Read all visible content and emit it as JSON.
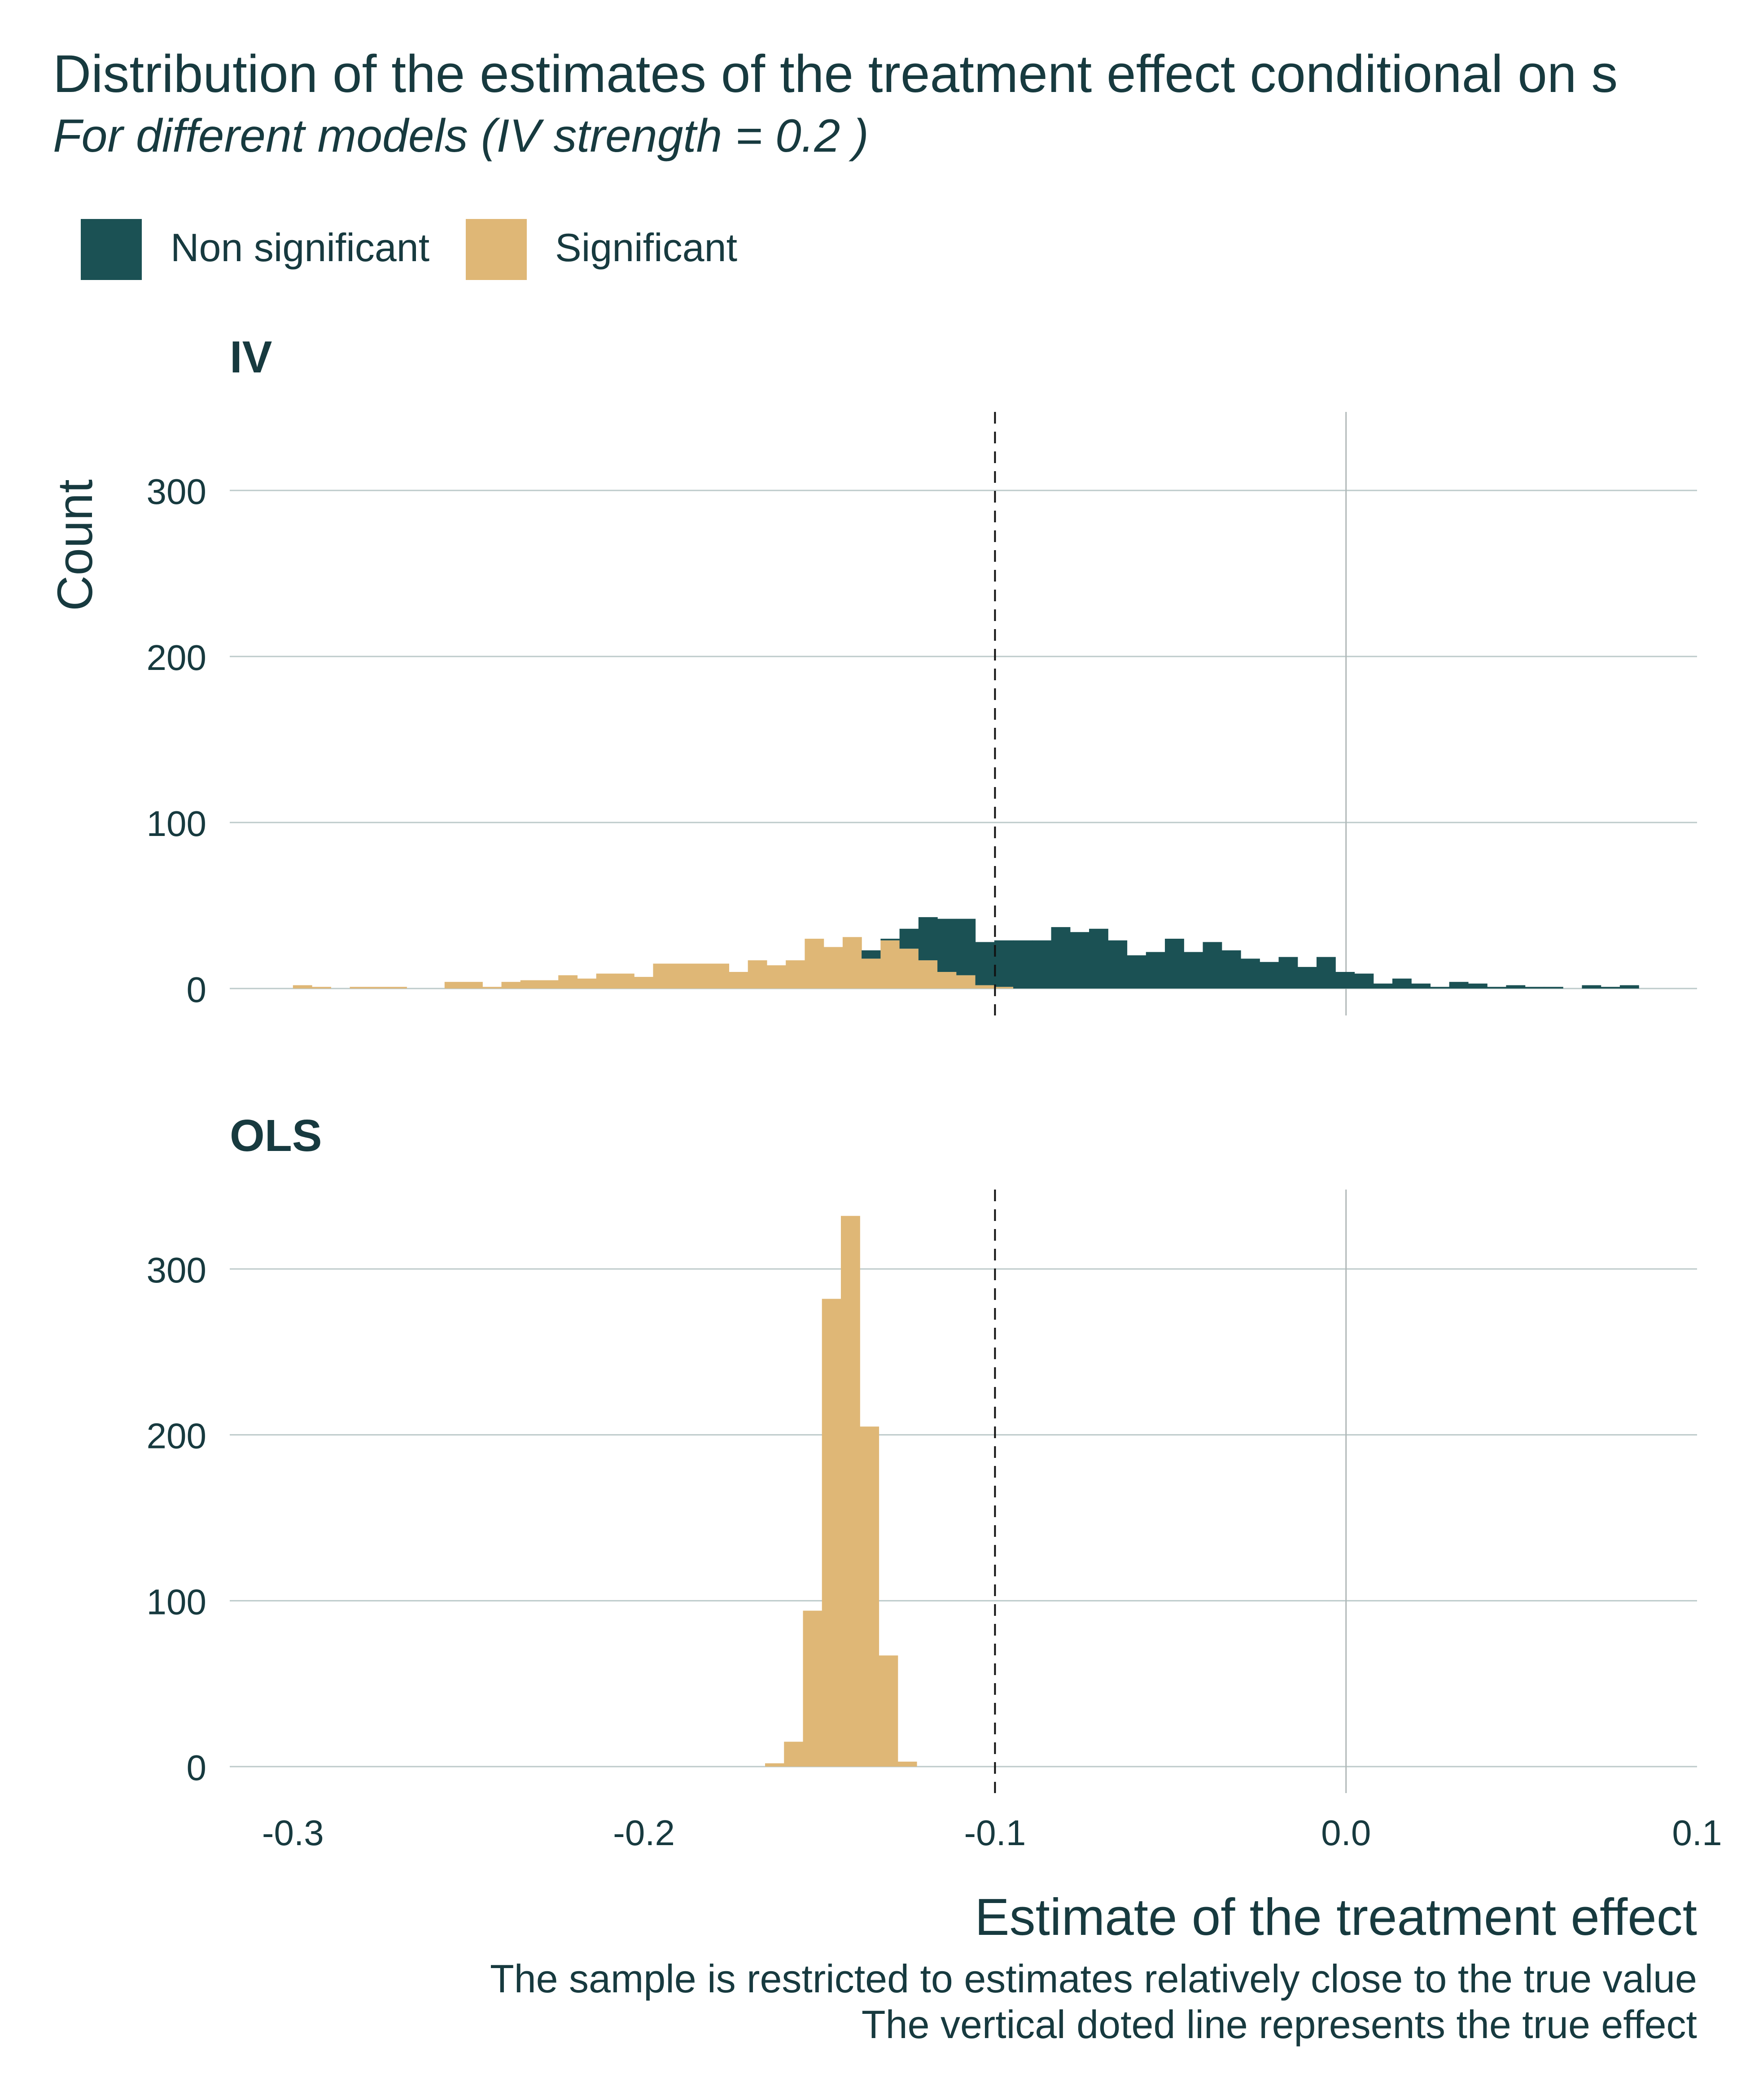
{
  "chart_data": {
    "type": "bar",
    "title": "Distribution of the estimates of the treatment effect conditional on s",
    "subtitle": "For different models (IV strength = 0.2 )",
    "xlabel": "Estimate of the treatment effect",
    "ylabel": "Count",
    "caption_lines": [
      "The sample is restricted to estimates relatively close to the true value",
      "The vertical doted line represents the true effect"
    ],
    "legend": {
      "position": "top-left",
      "items": [
        {
          "label": "Non significant",
          "color": "#1B5154"
        },
        {
          "label": "Significant",
          "color": "#DFB776"
        }
      ]
    },
    "xlim": [
      -0.318,
      0.1
    ],
    "x_ticks": [
      -0.3,
      -0.2,
      -0.1,
      0.0,
      0.1
    ],
    "x_tick_labels": [
      "-0.3",
      "-0.2",
      "-0.1",
      "0.0",
      "0.1"
    ],
    "ylim": [
      0,
      345
    ],
    "y_ticks": [
      0,
      100,
      200,
      300
    ],
    "y_tick_labels": [
      "0",
      "100",
      "200",
      "300"
    ],
    "true_effect": -0.1,
    "zero_line": 0.0,
    "grid": true,
    "bin_width": 0.0054,
    "panels": [
      {
        "label": "IV",
        "bin_starts": [
          -0.3,
          -0.2946,
          -0.2892,
          -0.2838,
          -0.2784,
          -0.273,
          -0.2676,
          -0.2622,
          -0.2568,
          -0.2514,
          -0.246,
          -0.2406,
          -0.2352,
          -0.2298,
          -0.2244,
          -0.219,
          -0.2136,
          -0.2082,
          -0.2028,
          -0.1974,
          -0.192,
          -0.1866,
          -0.1812,
          -0.1758,
          -0.1704,
          -0.165,
          -0.1596,
          -0.1542,
          -0.1488,
          -0.1434,
          -0.138,
          -0.1326,
          -0.1272,
          -0.1218,
          -0.1164,
          -0.111,
          -0.1056,
          -0.1002,
          -0.0948,
          -0.0894,
          -0.084,
          -0.0786,
          -0.0732,
          -0.0678,
          -0.0624,
          -0.057,
          -0.0516,
          -0.0462,
          -0.0408,
          -0.0354,
          -0.03,
          -0.0246,
          -0.0192,
          -0.0138,
          -0.0084,
          -0.003,
          0.0024,
          0.0078,
          0.0132,
          0.0186,
          0.024,
          0.0294,
          0.0348,
          0.0402,
          0.0456,
          0.051,
          0.0564,
          0.0618,
          0.0672,
          0.0726,
          0.078
        ],
        "series": [
          {
            "name": "Significant",
            "color": "#DFB776",
            "values": [
              2,
              1,
              0,
              1,
              1,
              1,
              0,
              0,
              4,
              4,
              1,
              4,
              5,
              5,
              8,
              6,
              9,
              9,
              7,
              15,
              15,
              15,
              15,
              10,
              17,
              14,
              17,
              30,
              25,
              31,
              18,
              29,
              24,
              17,
              10,
              8,
              2,
              1,
              0,
              0,
              0,
              0,
              0,
              0,
              0,
              0,
              0,
              0,
              0,
              0,
              0,
              0,
              0,
              0,
              0,
              0,
              0,
              0,
              0,
              0,
              0,
              0,
              0,
              0,
              0,
              0,
              0,
              0,
              0,
              0,
              0
            ]
          },
          {
            "name": "Non significant",
            "color": "#1B5154",
            "values": [
              0,
              0,
              0,
              0,
              0,
              0,
              0,
              0,
              0,
              0,
              0,
              0,
              0,
              0,
              0,
              0,
              0,
              0,
              0,
              0,
              0,
              0,
              0,
              0,
              0,
              0,
              0,
              0,
              0,
              0,
              5,
              1,
              12,
              26,
              32,
              34,
              26,
              28,
              29,
              29,
              37,
              34,
              36,
              29,
              20,
              22,
              30,
              22,
              28,
              23,
              18,
              16,
              19,
              13,
              19,
              10,
              9,
              3,
              6,
              3,
              1,
              4,
              3,
              1,
              2,
              1,
              1,
              0,
              2,
              1,
              2
            ]
          }
        ]
      },
      {
        "label": "OLS",
        "bin_starts": [
          -0.1655,
          -0.1601,
          -0.1547,
          -0.1493,
          -0.1439,
          -0.1385,
          -0.1331,
          -0.1277,
          -0.1223
        ],
        "series": [
          {
            "name": "Significant",
            "color": "#DFB776",
            "values": [
              2,
              15,
              94,
              282,
              332,
              205,
              67,
              3,
              0
            ]
          },
          {
            "name": "Non significant",
            "color": "#1B5154",
            "values": [
              0,
              0,
              0,
              0,
              0,
              0,
              0,
              0,
              0
            ]
          }
        ]
      }
    ]
  }
}
